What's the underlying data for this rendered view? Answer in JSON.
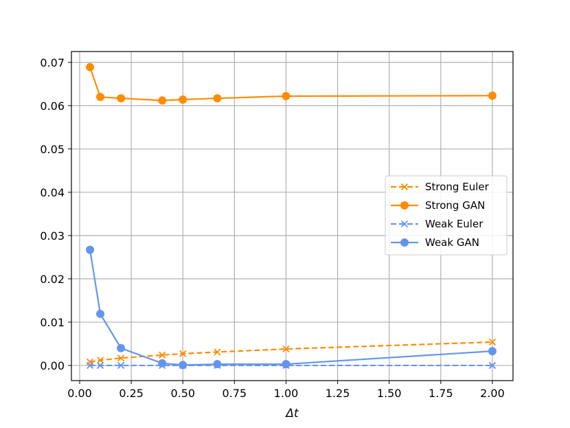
{
  "chart_data": {
    "type": "line",
    "title": "",
    "xlabel": "Δt",
    "ylabel": "",
    "xlim": [
      -0.04,
      2.1
    ],
    "ylim": [
      -0.0035,
      0.0725
    ],
    "xticks": [
      0.0,
      0.25,
      0.5,
      0.75,
      1.0,
      1.25,
      1.5,
      1.75,
      2.0
    ],
    "xtick_labels": [
      "0.00",
      "0.25",
      "0.50",
      "0.75",
      "1.00",
      "1.25",
      "1.50",
      "1.75",
      "2.00"
    ],
    "yticks": [
      0.0,
      0.01,
      0.02,
      0.03,
      0.04,
      0.05,
      0.06,
      0.07
    ],
    "ytick_labels": [
      "0.00",
      "0.01",
      "0.02",
      "0.03",
      "0.04",
      "0.05",
      "0.06",
      "0.07"
    ],
    "grid": true,
    "legend_position": "center-right",
    "x": [
      0.05,
      0.1,
      0.2,
      0.4,
      0.5,
      0.667,
      1.0,
      2.0
    ],
    "series": [
      {
        "name": "Strong Euler",
        "color": "#ff8c00",
        "dash": true,
        "marker": "x",
        "values": [
          0.0008,
          0.0012,
          0.0017,
          0.0024,
          0.0027,
          0.0031,
          0.0038,
          0.0054
        ]
      },
      {
        "name": "Strong GAN",
        "color": "#ff8c00",
        "dash": false,
        "marker": "circle",
        "values": [
          0.0689,
          0.062,
          0.0617,
          0.0612,
          0.0614,
          0.0617,
          0.0622,
          0.0623
        ]
      },
      {
        "name": "Weak Euler",
        "color": "#6495ed",
        "dash": true,
        "marker": "x",
        "values": [
          0.0,
          0.0,
          0.0,
          0.0,
          0.0,
          0.0,
          0.0,
          0.0
        ]
      },
      {
        "name": "Weak GAN",
        "color": "#6495ed",
        "dash": false,
        "marker": "circle",
        "values": [
          0.0267,
          0.0119,
          0.004,
          0.0005,
          0.0001,
          0.0003,
          0.0003,
          0.0033
        ]
      }
    ]
  }
}
